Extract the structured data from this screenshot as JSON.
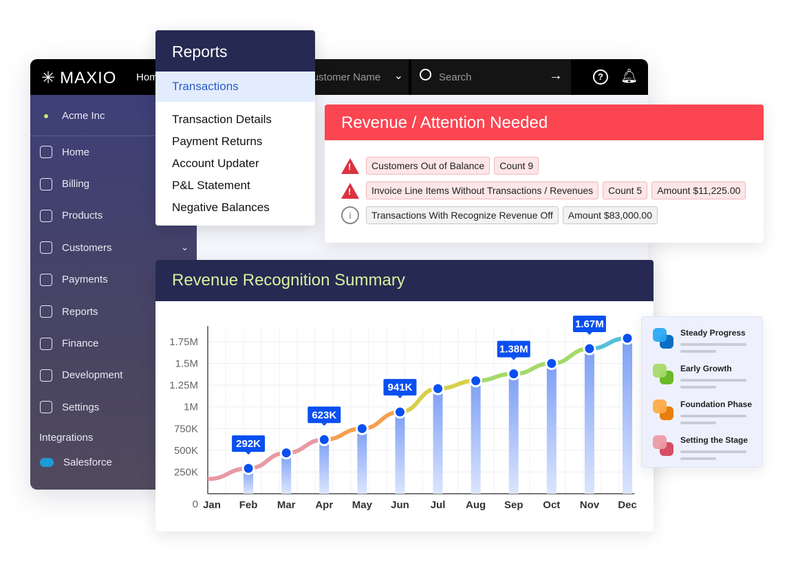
{
  "topbar": {
    "logo": "MAXIO",
    "home": "Home",
    "customer_placeholder": "Customer Name",
    "search_placeholder": "Search"
  },
  "sidebar": {
    "account": "Acme Inc",
    "items": [
      {
        "label": "Home"
      },
      {
        "label": "Billing"
      },
      {
        "label": "Products"
      },
      {
        "label": "Customers"
      },
      {
        "label": "Payments"
      },
      {
        "label": "Reports"
      },
      {
        "label": "Finance"
      },
      {
        "label": "Development"
      },
      {
        "label": "Settings"
      }
    ],
    "integrations_heading": "Integrations",
    "integration": "Salesforce"
  },
  "reports_menu": {
    "title": "Reports",
    "selected": "Transactions",
    "items": [
      "Transaction Details",
      "Payment Returns",
      "Account Updater",
      "P&L Statement",
      "Negative Balances"
    ]
  },
  "alert": {
    "title": "Revenue / Attention Needed",
    "rows": [
      {
        "icon": "warning-icon",
        "tags": [
          "Customers Out of Balance",
          "Count 9"
        ]
      },
      {
        "icon": "warning-icon",
        "tags": [
          "Invoice Line Items Without Transactions / Revenues",
          "Count 5",
          "Amount $11,225.00"
        ]
      },
      {
        "icon": "info-icon",
        "tags": [
          "Transactions With Recognize Revenue Off",
          "Amount $83,000.00"
        ]
      }
    ]
  },
  "legend": [
    {
      "label": "Steady Progress",
      "colors": [
        "#2aa8f2",
        "#0b6fc4"
      ]
    },
    {
      "label": "Early Growth",
      "colors": [
        "#a6d96a",
        "#6bb82a"
      ]
    },
    {
      "label": "Foundation Phase",
      "colors": [
        "#fdab48",
        "#e67f0d"
      ]
    },
    {
      "label": "Setting the Stage",
      "colors": [
        "#ec9aa5",
        "#d64f63"
      ]
    }
  ],
  "chart_data": {
    "type": "line",
    "title": "Revenue Recognition Summary",
    "categories": [
      "Jan",
      "Feb",
      "Mar",
      "Apr",
      "May",
      "Jun",
      "Jul",
      "Aug",
      "Sep",
      "Oct",
      "Nov",
      "Dec"
    ],
    "series": [
      {
        "name": "Revenue",
        "values": [
          170000,
          292000,
          470000,
          623000,
          750000,
          941000,
          1210000,
          1300000,
          1380000,
          1500000,
          1670000,
          1790000
        ]
      }
    ],
    "data_labels": [
      {
        "index": 1,
        "text": "292K"
      },
      {
        "index": 3,
        "text": "623K"
      },
      {
        "index": 5,
        "text": "941K"
      },
      {
        "index": 8,
        "text": "1.38M"
      },
      {
        "index": 10,
        "text": "1.67M"
      }
    ],
    "yticks": [
      "0",
      "250K",
      "500K",
      "750K",
      "1M",
      "1.25M",
      "1.5M",
      "1.75M"
    ],
    "ylim": [
      0,
      1900000
    ],
    "grid": true,
    "line_colors": [
      "#e89aa3",
      "#f5a050",
      "#d8cf4a",
      "#a6d96a",
      "#55bfd8"
    ]
  }
}
